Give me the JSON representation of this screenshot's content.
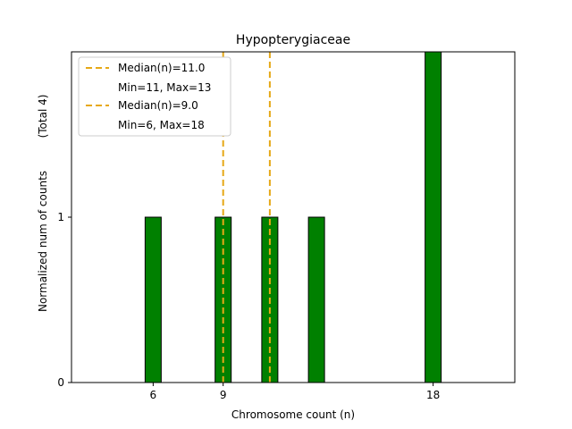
{
  "chart_data": {
    "type": "bar",
    "title": "Hypopterygiaceae",
    "xlabel": "Chromosome count (n)",
    "ylabel": "Normalized num of counts",
    "ylabel_note": "(Total 4)",
    "xlim": [
      2.5,
      21.5
    ],
    "ylim": [
      0,
      2.0
    ],
    "xticks": [
      6,
      9,
      18
    ],
    "yticks": [
      0,
      1
    ],
    "bars": [
      {
        "x": 6,
        "value": 1
      },
      {
        "x": 9,
        "value": 1
      },
      {
        "x": 11,
        "value": 1
      },
      {
        "x": 13,
        "value": 1
      },
      {
        "x": 18,
        "value": 2
      }
    ],
    "bar_color": "#008000",
    "median_lines": [
      {
        "x": 9,
        "color": "#e6a817"
      },
      {
        "x": 11,
        "color": "#e6a817"
      }
    ],
    "legend": [
      {
        "label": "Median(n)=11.0",
        "sub": "Min=11, Max=13",
        "color": "#e6a817"
      },
      {
        "label": "Median(n)=9.0",
        "sub": "Min=6, Max=18",
        "color": "#e6a817"
      }
    ],
    "legend_position": "top-left",
    "grid": false
  }
}
